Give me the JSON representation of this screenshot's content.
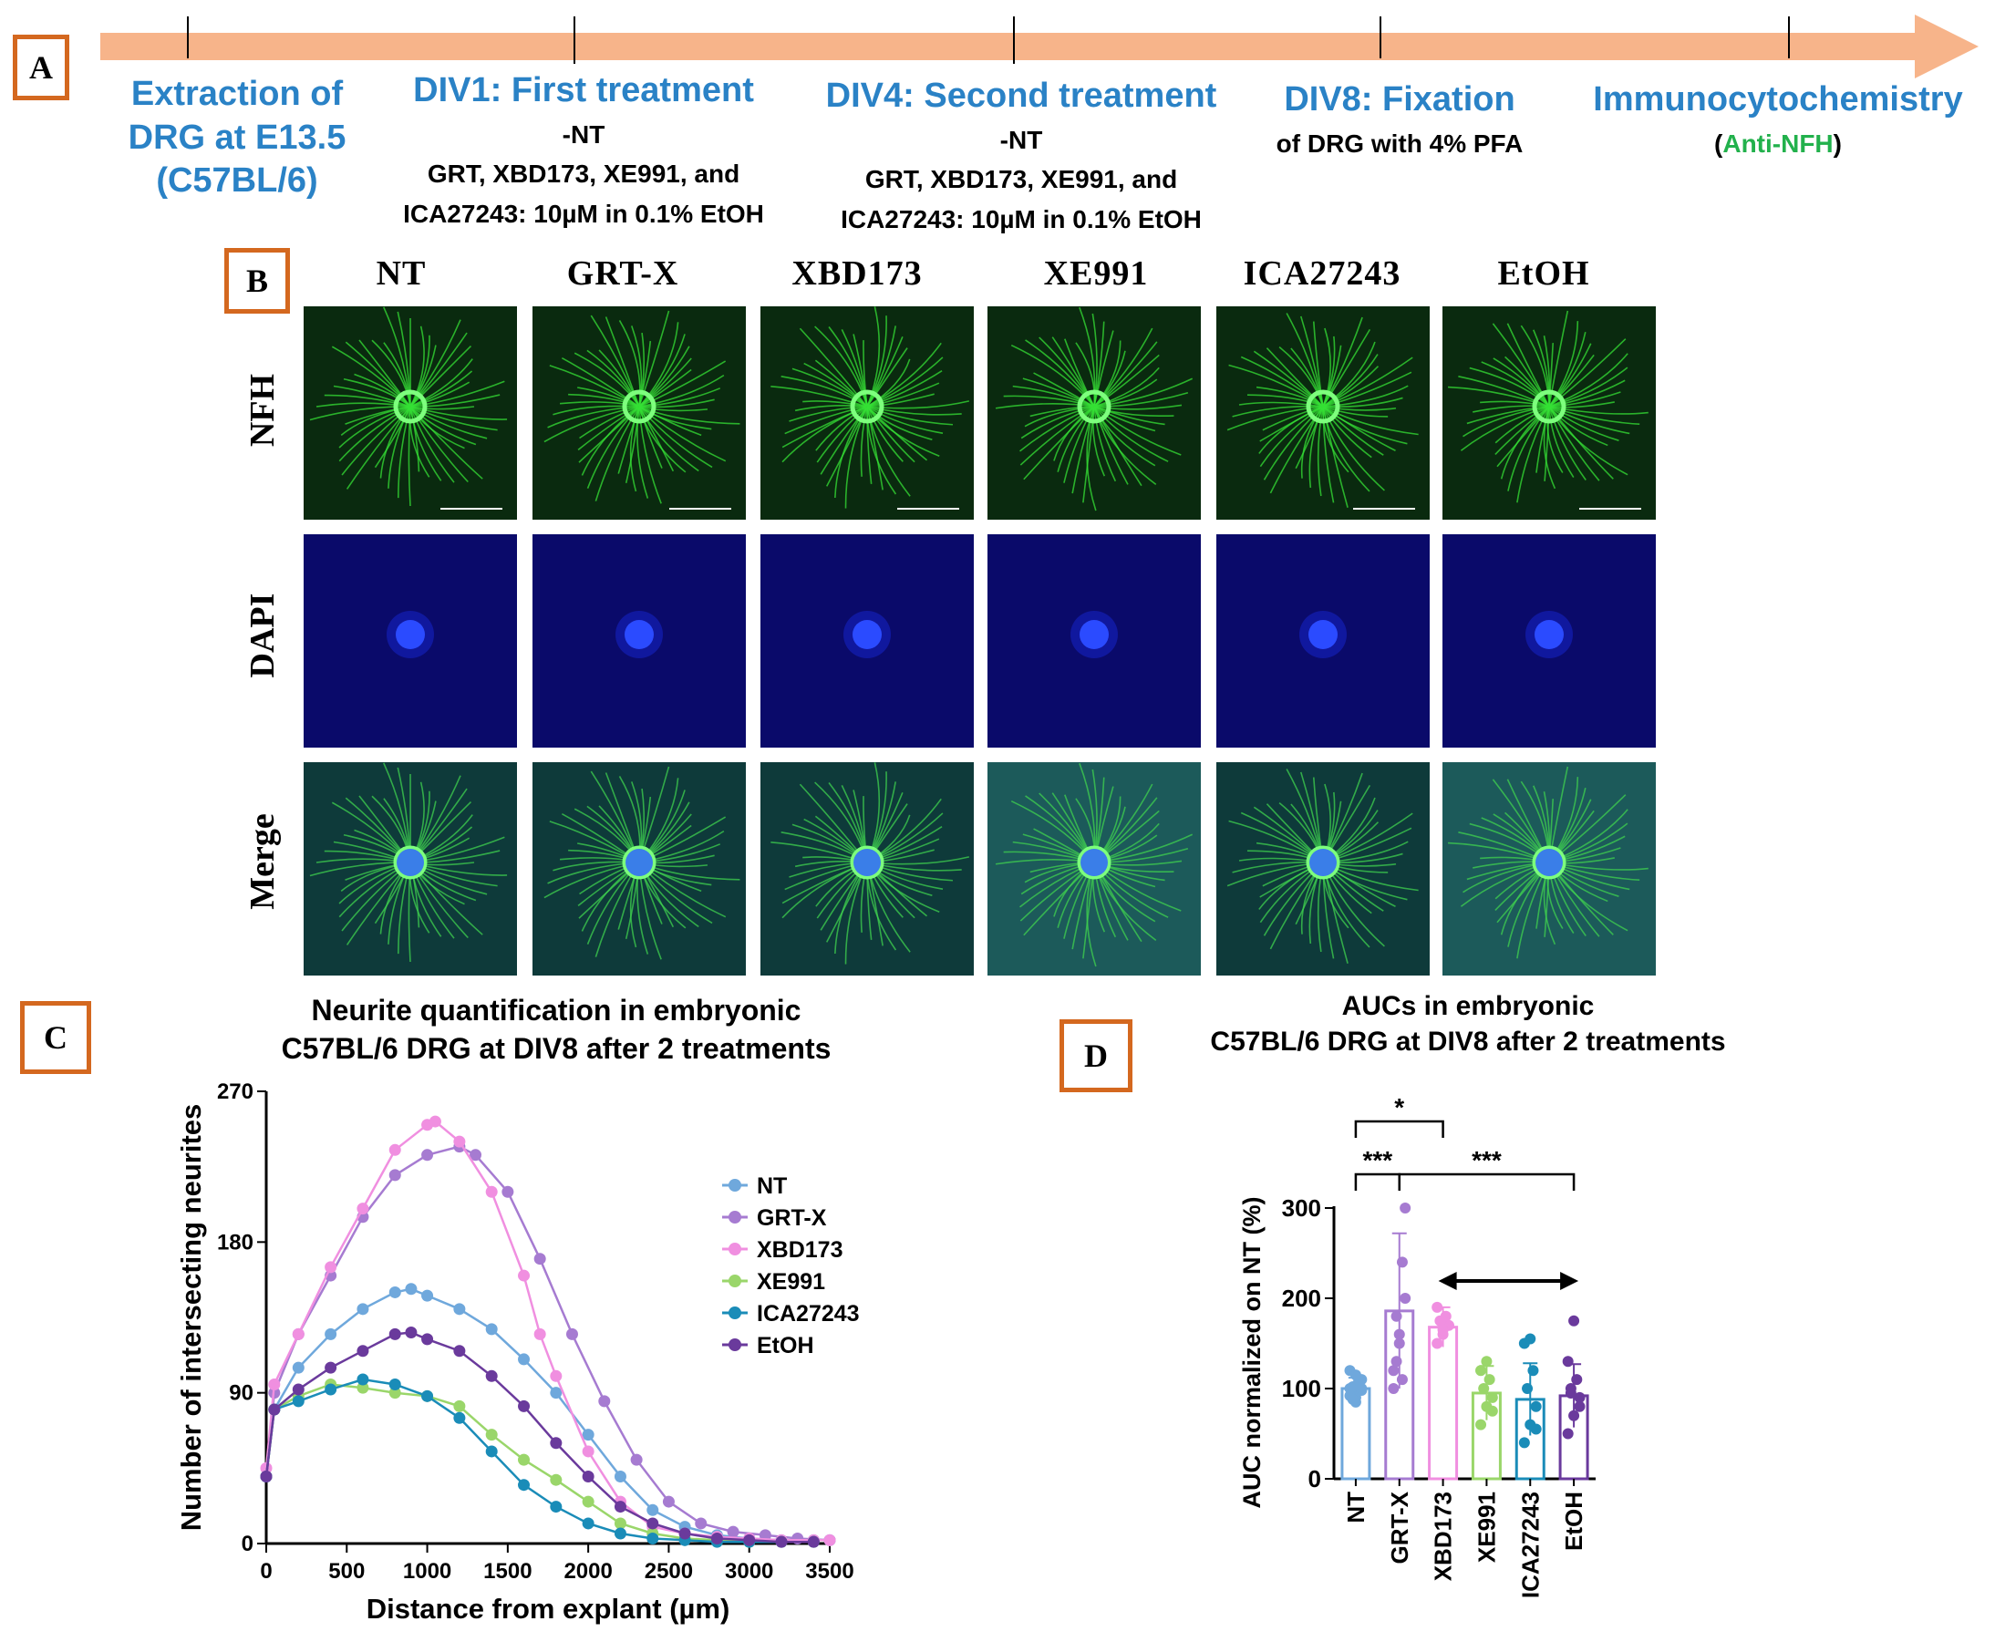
{
  "panels": {
    "a": "A",
    "b": "B",
    "c": "C",
    "d": "D"
  },
  "timeline": {
    "steps": [
      {
        "title": "Extraction of\nDRG at E13.5\n(C57BL/6)",
        "sub": ""
      },
      {
        "title": "DIV1: First treatment",
        "sub": "-NT\nGRT, XBD173, XE991, and\nICA27243: 10µM in 0.1% EtOH"
      },
      {
        "title": "DIV4: Second treatment",
        "sub": "-NT\nGRT, XBD173, XE991, and\nICA27243: 10µM in 0.1% EtOH"
      },
      {
        "title": "DIV8: Fixation",
        "sub": "of DRG with 4% PFA"
      },
      {
        "title": "Immunocytochemistry",
        "sub": ""
      }
    ],
    "icc_note": {
      "open": "(",
      "antibody": "Anti-NFH",
      "close": ")"
    }
  },
  "grid": {
    "columns": [
      "NT",
      "GRT-X",
      "XBD173",
      "XE991",
      "ICA27243",
      "EtOH"
    ],
    "rows": [
      "NFH",
      "DAPI",
      "Merge"
    ]
  },
  "colors": {
    "accent_orange": "#d4681f",
    "timeline_arrow": "#f7b48a",
    "step_title": "#2a82c6",
    "anti_nfh": "#22b14c"
  },
  "chart_c": {
    "title": "Neurite quantification in embryonic\nC57BL/6 DRG at DIV8 after 2 treatments"
  },
  "chart_d": {
    "title": "AUCs in embryonic\nC57BL/6 DRG at DIV8 after 2 treatments"
  },
  "chart_data": [
    {
      "type": "line",
      "title": "Neurite quantification in embryonic C57BL/6 DRG at DIV8 after 2 treatments",
      "xlabel": "Distance from explant (µm)",
      "ylabel": "Number of intersecting neurites",
      "xlim": [
        0,
        3500
      ],
      "ylim": [
        0,
        270
      ],
      "xticks": [
        0,
        500,
        1000,
        1500,
        2000,
        2500,
        3000,
        3500
      ],
      "yticks": [
        0,
        90,
        180,
        270
      ],
      "legend": "right",
      "series": [
        {
          "name": "NT",
          "color": "#6fa8dc",
          "points": [
            [
              0,
              40
            ],
            [
              50,
              80
            ],
            [
              200,
              105
            ],
            [
              400,
              125
            ],
            [
              600,
              140
            ],
            [
              800,
              150
            ],
            [
              900,
              152
            ],
            [
              1000,
              148
            ],
            [
              1200,
              140
            ],
            [
              1400,
              128
            ],
            [
              1600,
              110
            ],
            [
              1800,
              90
            ],
            [
              2000,
              65
            ],
            [
              2200,
              40
            ],
            [
              2400,
              20
            ],
            [
              2600,
              10
            ],
            [
              2800,
              5
            ],
            [
              3000,
              3
            ],
            [
              3200,
              2
            ],
            [
              3400,
              2
            ],
            [
              3500,
              2
            ]
          ]
        },
        {
          "name": "GRT-X",
          "color": "#a67bd1",
          "points": [
            [
              0,
              40
            ],
            [
              50,
              90
            ],
            [
              200,
              125
            ],
            [
              400,
              160
            ],
            [
              600,
              195
            ],
            [
              800,
              220
            ],
            [
              1000,
              232
            ],
            [
              1200,
              237
            ],
            [
              1300,
              232
            ],
            [
              1500,
              210
            ],
            [
              1700,
              170
            ],
            [
              1900,
              125
            ],
            [
              2100,
              85
            ],
            [
              2300,
              50
            ],
            [
              2500,
              25
            ],
            [
              2700,
              12
            ],
            [
              2900,
              7
            ],
            [
              3100,
              5
            ],
            [
              3300,
              3
            ],
            [
              3500,
              2
            ]
          ]
        },
        {
          "name": "XBD173",
          "color": "#f08fe0",
          "points": [
            [
              0,
              45
            ],
            [
              50,
              95
            ],
            [
              200,
              125
            ],
            [
              400,
              165
            ],
            [
              600,
              200
            ],
            [
              800,
              235
            ],
            [
              1000,
              250
            ],
            [
              1050,
              252
            ],
            [
              1200,
              240
            ],
            [
              1400,
              210
            ],
            [
              1600,
              160
            ],
            [
              1700,
              125
            ],
            [
              1800,
              100
            ],
            [
              2000,
              55
            ],
            [
              2200,
              25
            ],
            [
              2400,
              10
            ],
            [
              2600,
              6
            ],
            [
              2800,
              4
            ],
            [
              3000,
              3
            ],
            [
              3200,
              2
            ],
            [
              3400,
              2
            ],
            [
              3500,
              2
            ]
          ]
        },
        {
          "name": "XE991",
          "color": "#9ad66a",
          "points": [
            [
              0,
              40
            ],
            [
              50,
              80
            ],
            [
              200,
              88
            ],
            [
              400,
              95
            ],
            [
              600,
              93
            ],
            [
              800,
              90
            ],
            [
              1000,
              88
            ],
            [
              1200,
              82
            ],
            [
              1400,
              65
            ],
            [
              1600,
              50
            ],
            [
              1800,
              38
            ],
            [
              2000,
              25
            ],
            [
              2200,
              12
            ],
            [
              2400,
              6
            ],
            [
              2600,
              3
            ],
            [
              2800,
              2
            ],
            [
              3000,
              1
            ],
            [
              3200,
              1
            ],
            [
              3400,
              1
            ]
          ]
        },
        {
          "name": "ICA27243",
          "color": "#1a8cb8",
          "points": [
            [
              0,
              40
            ],
            [
              50,
              80
            ],
            [
              200,
              85
            ],
            [
              400,
              92
            ],
            [
              600,
              98
            ],
            [
              800,
              95
            ],
            [
              1000,
              88
            ],
            [
              1200,
              75
            ],
            [
              1400,
              55
            ],
            [
              1600,
              35
            ],
            [
              1800,
              22
            ],
            [
              2000,
              12
            ],
            [
              2200,
              6
            ],
            [
              2400,
              3
            ],
            [
              2600,
              2
            ],
            [
              2800,
              1
            ],
            [
              3000,
              1
            ],
            [
              3200,
              1
            ],
            [
              3400,
              1
            ]
          ]
        },
        {
          "name": "EtOH",
          "color": "#6a3a9c",
          "points": [
            [
              0,
              40
            ],
            [
              50,
              80
            ],
            [
              200,
              92
            ],
            [
              400,
              105
            ],
            [
              600,
              115
            ],
            [
              800,
              125
            ],
            [
              900,
              126
            ],
            [
              1000,
              122
            ],
            [
              1200,
              115
            ],
            [
              1400,
              100
            ],
            [
              1600,
              82
            ],
            [
              1800,
              60
            ],
            [
              2000,
              40
            ],
            [
              2200,
              22
            ],
            [
              2400,
              12
            ],
            [
              2600,
              6
            ],
            [
              2800,
              3
            ],
            [
              3000,
              2
            ],
            [
              3200,
              1
            ],
            [
              3400,
              1
            ]
          ]
        }
      ]
    },
    {
      "type": "bar",
      "title": "AUCs in embryonic C57BL/6 DRG at DIV8 after 2 treatments",
      "ylabel": "AUC normalized on NT (%)",
      "ylim": [
        0,
        300
      ],
      "yticks": [
        0,
        100,
        200,
        300
      ],
      "categories": [
        "NT",
        "GRT-X",
        "XBD173",
        "XE991",
        "ICA27243",
        "EtOH"
      ],
      "values": [
        100,
        186,
        168,
        95,
        88,
        92
      ],
      "sd": [
        12,
        86,
        22,
        30,
        40,
        35
      ],
      "colors": [
        "#6fa8dc",
        "#a67bd1",
        "#f08fe0",
        "#9ad66a",
        "#1a8cb8",
        "#6a3a9c"
      ],
      "points": [
        [
          100,
          85,
          110,
          95,
          105,
          120,
          90,
          98,
          102,
          108,
          92,
          115,
          100,
          88
        ],
        [
          100,
          150,
          300,
          180,
          240,
          120,
          160,
          200,
          130,
          110
        ],
        [
          150,
          160,
          170,
          175,
          180,
          190,
          165
        ],
        [
          60,
          80,
          90,
          100,
          110,
          120,
          130,
          75
        ],
        [
          40,
          60,
          80,
          100,
          120,
          150,
          155,
          55
        ],
        [
          50,
          70,
          90,
          100,
          110,
          130,
          175,
          80,
          95
        ]
      ],
      "significance": [
        {
          "from": "NT",
          "to": "XBD173",
          "label": "*"
        },
        {
          "from": "NT",
          "to": "GRT-X",
          "label": "***"
        },
        {
          "from": "GRT-X",
          "to": "EtOH",
          "label": "***"
        }
      ]
    }
  ]
}
